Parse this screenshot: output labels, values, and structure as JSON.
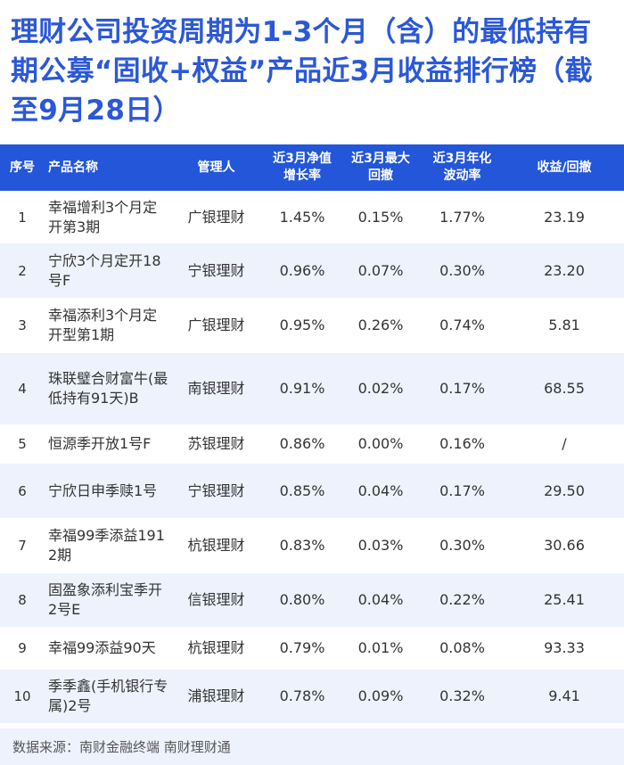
{
  "title": "理财公司投资周期为1-3个月（含）的最低持有期公募“固收+权益”产品近3月收益排行榜（截至9月28日）",
  "chart_data": {
    "type": "table",
    "columns": [
      "序号",
      "产品名称",
      "管理人",
      "近3月净值增长率",
      "近3月最大回撤",
      "近3月年化波动率",
      "收益/回撤"
    ],
    "header": {
      "rank": "序号",
      "name": "产品名称",
      "manager": "管理人",
      "growth_l1": "近3月净值",
      "growth_l2": "增长率",
      "drawdown_l1": "近3月最大",
      "drawdown_l2": "回撤",
      "volatility_l1": "近3月年化",
      "volatility_l2": "波动率",
      "ratio": "收益/回撤"
    },
    "rows": [
      {
        "rank": "1",
        "name": "幸福增利3个月定开第3期",
        "manager": "广银理财",
        "growth": "1.45%",
        "drawdown": "0.15%",
        "volatility": "1.77%",
        "ratio": "23.19"
      },
      {
        "rank": "2",
        "name": "宁欣3个月定开18号F",
        "manager": "宁银理财",
        "growth": "0.96%",
        "drawdown": "0.07%",
        "volatility": "0.30%",
        "ratio": "23.20"
      },
      {
        "rank": "3",
        "name": "幸福添利3个月定开型第1期",
        "manager": "广银理财",
        "growth": "0.95%",
        "drawdown": "0.26%",
        "volatility": "0.74%",
        "ratio": "5.81"
      },
      {
        "rank": "4",
        "name": "珠联璧合财富牛(最低持有91天)B",
        "manager": "南银理财",
        "growth": "0.91%",
        "drawdown": "0.02%",
        "volatility": "0.17%",
        "ratio": "68.55"
      },
      {
        "rank": "5",
        "name": "恒源季开放1号F",
        "manager": "苏银理财",
        "growth": "0.86%",
        "drawdown": "0.00%",
        "volatility": "0.16%",
        "ratio": "/"
      },
      {
        "rank": "6",
        "name": "宁欣日申季赎1号",
        "manager": "宁银理财",
        "growth": "0.85%",
        "drawdown": "0.04%",
        "volatility": "0.17%",
        "ratio": "29.50"
      },
      {
        "rank": "7",
        "name": "幸福99季添益1912期",
        "manager": "杭银理财",
        "growth": "0.83%",
        "drawdown": "0.03%",
        "volatility": "0.30%",
        "ratio": "30.66"
      },
      {
        "rank": "8",
        "name": "固盈象添利宝季开2号E",
        "manager": "信银理财",
        "growth": "0.80%",
        "drawdown": "0.04%",
        "volatility": "0.22%",
        "ratio": "25.41"
      },
      {
        "rank": "9",
        "name": "幸福99添益90天",
        "manager": "杭银理财",
        "growth": "0.79%",
        "drawdown": "0.01%",
        "volatility": "0.08%",
        "ratio": "93.33"
      },
      {
        "rank": "10",
        "name": "季季鑫(手机银行专属)2号",
        "manager": "浦银理财",
        "growth": "0.78%",
        "drawdown": "0.09%",
        "volatility": "0.32%",
        "ratio": "9.41"
      }
    ]
  },
  "source": "数据来源：南财金融终端 南财理财通",
  "colors": {
    "title": "#2b58d6",
    "header_bg": "#2356d8",
    "stripe": "#edf2fd",
    "footer_bg": "#eef2fd"
  }
}
